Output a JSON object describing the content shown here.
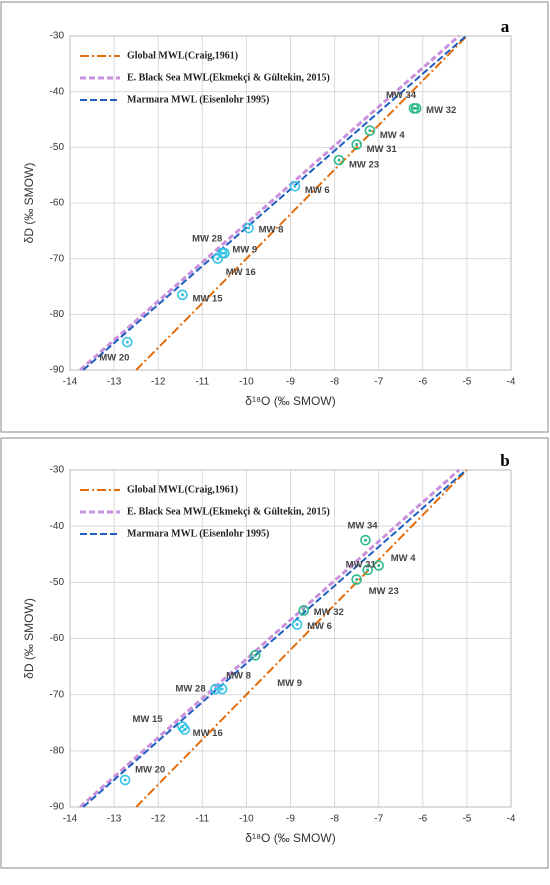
{
  "chart_data": [
    {
      "type": "scatter",
      "panel_label": "a",
      "xlabel": "δ¹⁸O (‰ SMOW)",
      "ylabel": "δD (‰ SMOW)",
      "xlim": [
        -14,
        -4
      ],
      "ylim": [
        -90,
        -30
      ],
      "xticks": [
        -14,
        -13,
        -12,
        -11,
        -10,
        -9,
        -8,
        -7,
        -6,
        -5,
        -4
      ],
      "yticks": [
        -90,
        -80,
        -70,
        -60,
        -50,
        -40,
        -30
      ],
      "lines": [
        {
          "name": "Global MWL(Craig,1961)",
          "color": "#e46c0a",
          "x": [
            -12.5,
            -5
          ],
          "values": [
            -90,
            -30
          ]
        },
        {
          "name": "E. Black Sea MWL(Ekmekçi & Gültekin, 2015)",
          "color": "#c990dc",
          "x": [
            -13.77,
            -5.18
          ],
          "values": [
            -90,
            -30
          ]
        },
        {
          "name": "Marmara MWL (Eisenlohr 1995)",
          "color": "#1f5fbf",
          "x": [
            -13.7,
            -5.02
          ],
          "values": [
            -90,
            -30
          ]
        }
      ],
      "points": {
        "labels": [
          "MW 34",
          "MW 32",
          "MW 4",
          "MW 31",
          "MW 23",
          "MW 6",
          "MW 8",
          "MW 28",
          "MW 9",
          "MW 16",
          "MW 15",
          "MW 20"
        ],
        "colors": [
          "#2db98a",
          "#2db98a",
          "#2db98a",
          "#2db98a",
          "#2db98a",
          "#33c3e6",
          "#33c3e6",
          "#33c3e6",
          "#33c3e6",
          "#33c3e6",
          "#33c3e6",
          "#33c3e6"
        ],
        "x": [
          -6.2,
          -6.15,
          -7.2,
          -7.5,
          -7.9,
          -8.9,
          -9.95,
          -10.55,
          -10.5,
          -10.65,
          -11.45,
          -12.7
        ],
        "values": [
          -43,
          -43,
          -47,
          -49.5,
          -52.3,
          -57,
          -64.5,
          -69,
          -69,
          -70,
          -76.5,
          -85
        ]
      }
    },
    {
      "type": "scatter",
      "panel_label": "b",
      "xlabel": "δ¹⁸O (‰ SMOW)",
      "ylabel": "δD (‰ SMOW)",
      "xlim": [
        -14,
        -4
      ],
      "ylim": [
        -90,
        -30
      ],
      "xticks": [
        -14,
        -13,
        -12,
        -11,
        -10,
        -9,
        -8,
        -7,
        -6,
        -5,
        -4
      ],
      "yticks": [
        -90,
        -80,
        -70,
        -60,
        -50,
        -40,
        -30
      ],
      "lines": [
        {
          "name": "Global MWL(Craig,1961)",
          "color": "#e46c0a",
          "x": [
            -12.5,
            -5
          ],
          "values": [
            -90,
            -30
          ]
        },
        {
          "name": "E. Black Sea MWL(Ekmekçi & Gültekin, 2015)",
          "color": "#c990dc",
          "x": [
            -13.77,
            -5.18
          ],
          "values": [
            -90,
            -30
          ]
        },
        {
          "name": "Marmara MWL (Eisenlohr 1995)",
          "color": "#1f5fbf",
          "x": [
            -13.7,
            -5.02
          ],
          "values": [
            -90,
            -30
          ]
        }
      ],
      "points": {
        "labels": [
          "MW 34",
          "MW 4",
          "MW 31",
          "MW 23",
          "MW 32",
          "MW 6",
          "MW 9",
          "MW 8",
          "MW 28",
          "MW 15",
          "MW 16",
          "MW 20"
        ],
        "colors": [
          "#2db98a",
          "#2db98a",
          "#2db98a",
          "#2db98a",
          "#2db98a",
          "#33c3e6",
          "#2db98a",
          "#33c3e6",
          "#33c3e6",
          "#33c3e6",
          "#33c3e6",
          "#33c3e6"
        ],
        "x": [
          -7.3,
          -7.0,
          -7.25,
          -7.5,
          -8.7,
          -8.85,
          -9.8,
          -10.55,
          -10.7,
          -11.45,
          -11.4,
          -12.75
        ],
        "values": [
          -42.5,
          -47,
          -47.8,
          -49.5,
          -55,
          -57.5,
          -63,
          -69,
          -69,
          -75.7,
          -76.2,
          -85.2
        ]
      }
    }
  ]
}
